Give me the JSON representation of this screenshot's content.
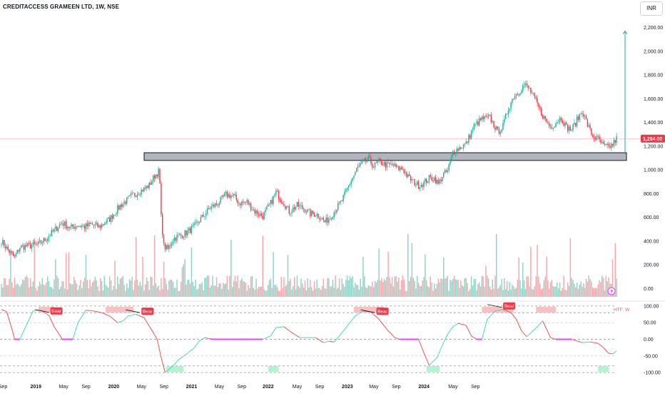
{
  "header": {
    "title": "CREDITACCESS GRAMEEN LTD, 1W, NSE",
    "currency": "INR"
  },
  "price_axis": {
    "ticks": [
      "2,200.00",
      "2,000.00",
      "1,800.00",
      "1,600.00",
      "1,400.00",
      "1,200.00",
      "1,000.00",
      "800.00",
      "600.00",
      "400.00",
      "200.00",
      "0.00"
    ]
  },
  "osc_axis": {
    "ticks": [
      "100.00",
      "50.00",
      "0.00",
      "-50.00",
      "-100.00"
    ]
  },
  "time_axis": {
    "labels": [
      "Sep",
      "2019",
      "May",
      "Sep",
      "2020",
      "May",
      "Sep",
      "2021",
      "May",
      "Sep",
      "2022",
      "May",
      "Sep",
      "2023",
      "May",
      "Sep",
      "2024",
      "May",
      "Sep"
    ]
  },
  "last_price": {
    "label": "1,264.00",
    "value": 1264,
    "color": "#f23645"
  },
  "zone": {
    "low": 1080,
    "high": 1145,
    "fill": "#b2b5be",
    "stroke": "#131722"
  },
  "arrow_target": 2170,
  "osc_tag": "HTF: W",
  "bear_labels": [
    "Bear",
    "Bear",
    "Bear",
    "Bear"
  ],
  "colors": {
    "up": "#22ab94",
    "down": "#f23645",
    "vol_up": "#93d4c8",
    "vol_down": "#f6a9ae",
    "osc_up": "#4ad6b0",
    "osc_down": "#ef5350",
    "ob": "#f7b6b6",
    "os": "#a8eecb",
    "mid": "#e040fb",
    "arrow": "#26a69a"
  },
  "chart_data": {
    "type": "candlestick",
    "interval": "1W",
    "symbol": "CREDITACCESS GRAMEEN LTD",
    "exchange": "NSE",
    "y_range": [
      -150,
      2300
    ],
    "keypoints": [
      [
        0,
        400
      ],
      [
        3,
        355
      ],
      [
        6,
        310
      ],
      [
        10,
        262
      ],
      [
        14,
        350
      ],
      [
        24,
        365
      ],
      [
        28,
        372
      ],
      [
        34,
        420
      ],
      [
        40,
        490
      ],
      [
        46,
        555
      ],
      [
        52,
        512
      ],
      [
        58,
        535
      ],
      [
        63,
        520
      ],
      [
        68,
        540
      ],
      [
        74,
        520
      ],
      [
        82,
        585
      ],
      [
        90,
        700
      ],
      [
        100,
        790
      ],
      [
        108,
        840
      ],
      [
        112,
        870
      ],
      [
        116,
        950
      ],
      [
        119,
        985
      ],
      [
        120,
        880
      ],
      [
        121,
        600
      ],
      [
        123,
        360
      ],
      [
        126,
        330
      ],
      [
        130,
        420
      ],
      [
        134,
        440
      ],
      [
        140,
        470
      ],
      [
        146,
        520
      ],
      [
        152,
        600
      ],
      [
        158,
        680
      ],
      [
        164,
        720
      ],
      [
        170,
        790
      ],
      [
        176,
        780
      ],
      [
        180,
        720
      ],
      [
        186,
        730
      ],
      [
        192,
        650
      ],
      [
        198,
        610
      ],
      [
        204,
        720
      ],
      [
        208,
        810
      ],
      [
        214,
        720
      ],
      [
        218,
        650
      ],
      [
        224,
        700
      ],
      [
        230,
        670
      ],
      [
        234,
        630
      ],
      [
        238,
        630
      ],
      [
        242,
        600
      ],
      [
        245,
        560
      ],
      [
        249,
        600
      ],
      [
        254,
        680
      ],
      [
        258,
        740
      ],
      [
        264,
        890
      ],
      [
        270,
        1020
      ],
      [
        274,
        1060
      ],
      [
        278,
        1090
      ],
      [
        282,
        1030
      ],
      [
        286,
        1070
      ],
      [
        292,
        1040
      ],
      [
        297,
        1040
      ],
      [
        300,
        1010
      ],
      [
        304,
        1010
      ],
      [
        308,
        940
      ],
      [
        312,
        900
      ],
      [
        316,
        870
      ],
      [
        320,
        890
      ],
      [
        324,
        930
      ],
      [
        328,
        930
      ],
      [
        331,
        880
      ],
      [
        334,
        950
      ],
      [
        338,
        990
      ],
      [
        342,
        1150
      ],
      [
        346,
        1180
      ],
      [
        352,
        1220
      ],
      [
        358,
        1370
      ],
      [
        364,
        1430
      ],
      [
        370,
        1440
      ],
      [
        376,
        1320
      ],
      [
        380,
        1370
      ],
      [
        384,
        1520
      ],
      [
        388,
        1620
      ],
      [
        392,
        1660
      ],
      [
        396,
        1720
      ],
      [
        400,
        1680
      ],
      [
        404,
        1600
      ],
      [
        408,
        1500
      ],
      [
        412,
        1420
      ],
      [
        416,
        1360
      ],
      [
        420,
        1400
      ],
      [
        424,
        1440
      ],
      [
        428,
        1360
      ],
      [
        432,
        1340
      ],
      [
        436,
        1420
      ],
      [
        440,
        1500
      ],
      [
        444,
        1380
      ],
      [
        448,
        1280
      ],
      [
        452,
        1260
      ],
      [
        456,
        1200
      ],
      [
        460,
        1190
      ],
      [
        463,
        1215
      ],
      [
        466,
        1264
      ]
    ],
    "osc_keypoints": [
      [
        0,
        90
      ],
      [
        4,
        83
      ],
      [
        8,
        30
      ],
      [
        10,
        0
      ],
      [
        14,
        0
      ],
      [
        18,
        35
      ],
      [
        24,
        85
      ],
      [
        30,
        87
      ],
      [
        36,
        72
      ],
      [
        40,
        37
      ],
      [
        44,
        14
      ],
      [
        46,
        0
      ],
      [
        50,
        0
      ],
      [
        54,
        0
      ],
      [
        58,
        50
      ],
      [
        64,
        87
      ],
      [
        70,
        85
      ],
      [
        76,
        80
      ],
      [
        82,
        70
      ],
      [
        88,
        50
      ],
      [
        92,
        55
      ],
      [
        96,
        70
      ],
      [
        102,
        75
      ],
      [
        108,
        65
      ],
      [
        112,
        40
      ],
      [
        115,
        20
      ],
      [
        118,
        0
      ],
      [
        121,
        -55
      ],
      [
        124,
        -100
      ],
      [
        130,
        -80
      ],
      [
        134,
        -62
      ],
      [
        140,
        -45
      ],
      [
        146,
        -26
      ],
      [
        150,
        -5
      ],
      [
        154,
        5
      ],
      [
        160,
        0
      ],
      [
        166,
        0
      ],
      [
        172,
        0
      ],
      [
        180,
        0
      ],
      [
        186,
        0
      ],
      [
        192,
        0
      ],
      [
        198,
        0
      ],
      [
        204,
        10
      ],
      [
        208,
        35
      ],
      [
        214,
        38
      ],
      [
        220,
        20
      ],
      [
        226,
        5
      ],
      [
        232,
        5
      ],
      [
        238,
        5
      ],
      [
        244,
        -10
      ],
      [
        248,
        -6
      ],
      [
        252,
        -8
      ],
      [
        256,
        10
      ],
      [
        262,
        40
      ],
      [
        268,
        70
      ],
      [
        274,
        85
      ],
      [
        280,
        82
      ],
      [
        286,
        60
      ],
      [
        292,
        30
      ],
      [
        298,
        5
      ],
      [
        302,
        0
      ],
      [
        308,
        0
      ],
      [
        312,
        0
      ],
      [
        316,
        0
      ],
      [
        320,
        -40
      ],
      [
        324,
        -78
      ],
      [
        330,
        -55
      ],
      [
        334,
        -18
      ],
      [
        338,
        15
      ],
      [
        342,
        38
      ],
      [
        346,
        48
      ],
      [
        352,
        42
      ],
      [
        356,
        10
      ],
      [
        360,
        0
      ],
      [
        364,
        0
      ],
      [
        368,
        60
      ],
      [
        374,
        85
      ],
      [
        380,
        90
      ],
      [
        386,
        80
      ],
      [
        390,
        60
      ],
      [
        394,
        25
      ],
      [
        398,
        8
      ],
      [
        404,
        30
      ],
      [
        410,
        55
      ],
      [
        416,
        5
      ],
      [
        420,
        0
      ],
      [
        426,
        0
      ],
      [
        432,
        0
      ],
      [
        440,
        -10
      ],
      [
        446,
        -8
      ],
      [
        452,
        -12
      ],
      [
        456,
        -25
      ],
      [
        460,
        -42
      ],
      [
        463,
        -44
      ],
      [
        466,
        -35
      ]
    ],
    "overbought_zones": [
      [
        28,
        40
      ],
      [
        79,
        100
      ],
      [
        267,
        290
      ],
      [
        364,
        388
      ],
      [
        405,
        420
      ]
    ],
    "oversold_zones": [
      [
        125,
        138
      ],
      [
        202,
        210
      ],
      [
        322,
        332
      ],
      [
        452,
        460
      ]
    ],
    "bear_markers": [
      [
        36,
        81
      ],
      [
        105,
        80
      ],
      [
        283,
        80
      ],
      [
        379,
        96
      ]
    ],
    "volume_spikes": {
      "367": 270,
      "375": 550,
      "395": 300,
      "359": 160,
      "280": 90
    }
  }
}
